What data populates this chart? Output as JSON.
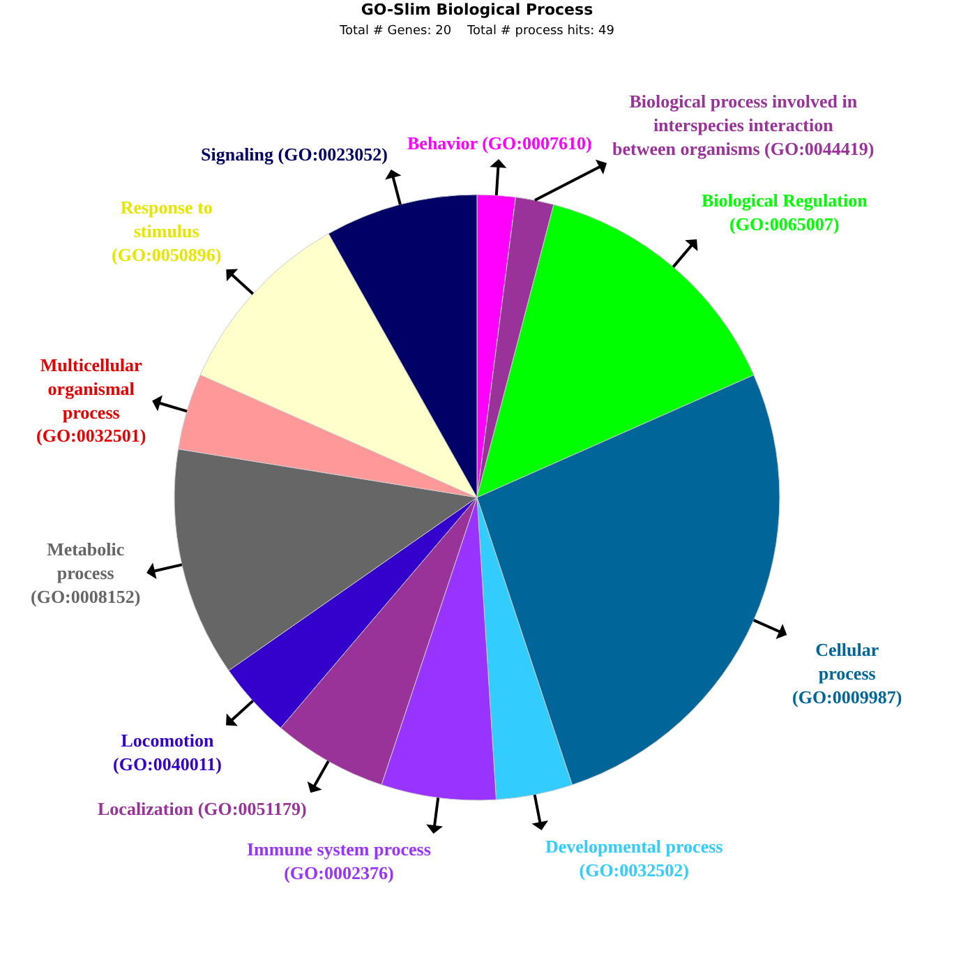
{
  "chart_data": {
    "type": "pie",
    "title": "GO-Slim Biological Process",
    "subtitle": "Total # Genes: 20    Total # process hits: 49",
    "categories": [
      "Behavior (GO:0007610)",
      "Biological process involved in interspecies interaction between organisms (GO:0044419)",
      "Biological Regulation (GO:0065007)",
      "Cellular process (GO:0009987)",
      "Developmental process (GO:0032502)",
      "Immune system process (GO:0002376)",
      "Localization (GO:0051179)",
      "Locomotion (GO:0040011)",
      "Metabolic process (GO:0008152)",
      "Multicellular organismal process (GO:0032501)",
      "Response to stimulus (GO:0050896)",
      "Signaling (GO:0023052)"
    ],
    "values": [
      2.04,
      2.04,
      14.29,
      26.53,
      4.08,
      6.12,
      6.12,
      4.08,
      12.24,
      4.08,
      10.2,
      8.16
    ],
    "colors": [
      "#ff00ff",
      "#993399",
      "#00ff00",
      "#006699",
      "#33ccff",
      "#9933ff",
      "#993399",
      "#3300cc",
      "#666666",
      "#ff9999",
      "#ffffcc",
      "#000066"
    ],
    "legend": false
  }
}
